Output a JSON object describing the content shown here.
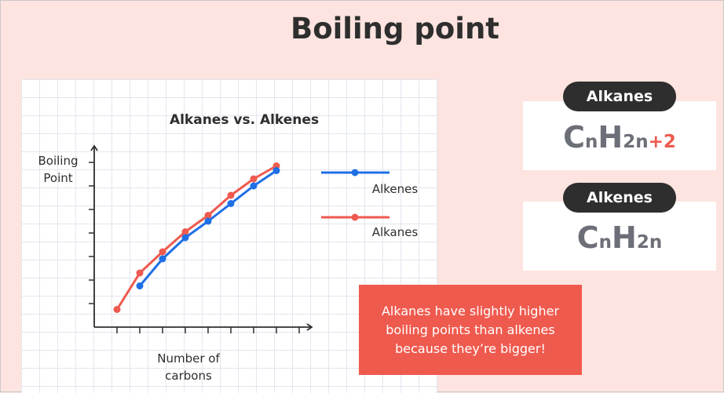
{
  "slide": {
    "title": "Boiling point",
    "note": "Alkanes have slightly higher boiling points than alkenes because they’re bigger!"
  },
  "formulas": [
    {
      "name": "Alkanes",
      "base": "C",
      "sub1": "n",
      "h": "H",
      "sub2": "2n",
      "extra": "+2"
    },
    {
      "name": "Alkenes",
      "base": "C",
      "sub1": "n",
      "h": "H",
      "sub2": "2n"
    }
  ],
  "colors": {
    "alkenes": "#1f6fe5",
    "alkanes": "#ee5a4f",
    "background": "#fde4e0",
    "dark": "#2e2e2e"
  },
  "chart_data": {
    "type": "line",
    "title": "Alkanes vs. Alkenes",
    "xlabel": "Number of carbons",
    "ylabel": "Boiling Point",
    "xlim": [
      0,
      9.5
    ],
    "ylim": [
      0,
      7
    ],
    "grid": true,
    "legend_position": "right",
    "series": [
      {
        "name": "Alkenes",
        "color": "#1f6fe5",
        "x": [
          2,
          3,
          4,
          5,
          6,
          7,
          8
        ],
        "y": [
          1.75,
          2.9,
          3.8,
          4.5,
          5.25,
          6.0,
          6.65
        ]
      },
      {
        "name": "Alkanes",
        "color": "#ee5a4f",
        "x": [
          1,
          2,
          3,
          4,
          5,
          6,
          7,
          8
        ],
        "y": [
          0.75,
          2.3,
          3.2,
          4.05,
          4.75,
          5.6,
          6.3,
          6.85
        ]
      }
    ]
  }
}
